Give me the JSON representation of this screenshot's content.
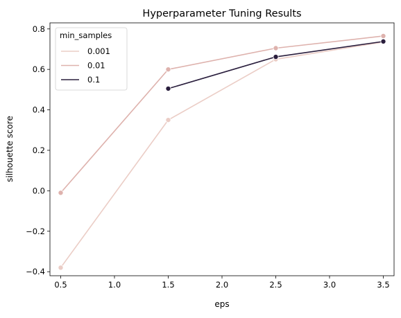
{
  "chart_data": {
    "type": "line",
    "title": "Hyperparameter Tuning Results",
    "xlabel": "eps",
    "ylabel": "silhouette score",
    "xlim": [
      0.4,
      3.6
    ],
    "ylim": [
      -0.42,
      0.83
    ],
    "x_ticks": [
      0.5,
      1.0,
      1.5,
      2.0,
      2.5,
      3.0,
      3.5
    ],
    "x_tick_labels": [
      "0.5",
      "1.0",
      "1.5",
      "2.0",
      "2.5",
      "3.0",
      "3.5"
    ],
    "y_ticks": [
      -0.4,
      -0.2,
      0.0,
      0.2,
      0.4,
      0.6,
      0.8
    ],
    "y_tick_labels": [
      "−0.4",
      "−0.2",
      "0.0",
      "0.2",
      "0.4",
      "0.6",
      "0.8"
    ],
    "grid": false,
    "legend": {
      "title": "min_samples",
      "placement": "top-left"
    },
    "series": [
      {
        "name": "0.001",
        "color": "#ebcdc6",
        "x": [
          0.5,
          1.5,
          2.5,
          3.5
        ],
        "y": [
          -0.38,
          0.35,
          0.65,
          0.735
        ]
      },
      {
        "name": "0.01",
        "color": "#deb2ad",
        "x": [
          0.5,
          1.5,
          2.5,
          3.5
        ],
        "y": [
          -0.01,
          0.6,
          0.705,
          0.765
        ]
      },
      {
        "name": "0.1",
        "color": "#2a1e3d",
        "x": [
          1.5,
          2.5,
          3.5
        ],
        "y": [
          0.505,
          0.662,
          0.738
        ]
      }
    ]
  }
}
